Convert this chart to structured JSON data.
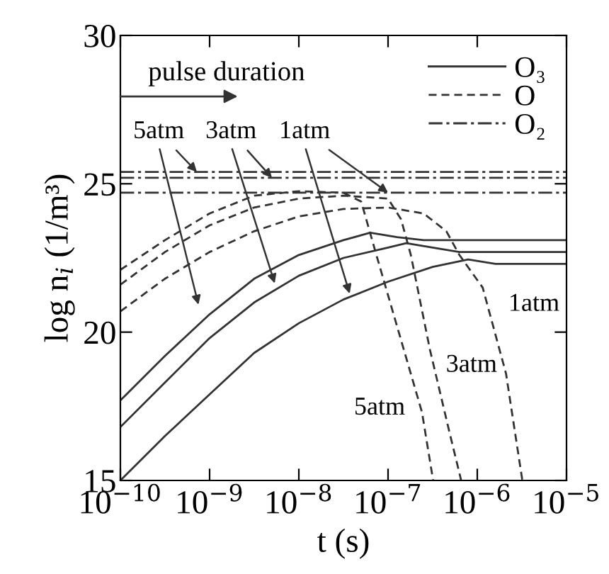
{
  "chart_data": {
    "type": "line",
    "xlabel": "t (s)",
    "ylabel": "log n$_{i}$ (1/m³)",
    "log": "x",
    "xlim": [
      1e-10,
      1e-05
    ],
    "ylim": [
      15,
      30
    ],
    "xticks": [
      {
        "value": 1e-10,
        "label": "10$^{−10}$"
      },
      {
        "value": 1e-09,
        "label": "10$^{−9}$"
      },
      {
        "value": 1e-08,
        "label": "10$^{−8}$"
      },
      {
        "value": 1e-07,
        "label": "10$^{−7}$"
      },
      {
        "value": 1e-06,
        "label": "10$^{−6}$"
      },
      {
        "value": 1e-05,
        "label": "10$^{−5}$"
      }
    ],
    "yticks": [
      15,
      20,
      25,
      30
    ],
    "grid": false,
    "legend": "top right",
    "marker": "none",
    "series": [
      {
        "name": "O₃",
        "color": "#333333",
        "line_style": "solid",
        "x": [
          1e-10,
          3.16e-10,
          1e-09,
          3.16e-09,
          1e-08,
          3.16e-08,
          6.3e-08,
          1.26e-07,
          2.5e-07,
          1e-05
        ],
        "values": [
          17.7,
          19.2,
          20.6,
          21.8,
          22.6,
          23.1,
          23.35,
          23.2,
          23.1,
          23.1
        ]
      },
      {
        "color": "#333333",
        "line_style": "solid",
        "x": [
          1e-10,
          3.16e-10,
          1e-09,
          3.16e-09,
          1e-08,
          3.16e-08,
          1e-07,
          1.6e-07,
          3.16e-07,
          6.3e-07,
          1e-05
        ],
        "values": [
          16.8,
          18.3,
          19.8,
          21.0,
          21.9,
          22.5,
          22.85,
          23.0,
          22.85,
          22.7,
          22.7
        ]
      },
      {
        "color": "#333333",
        "line_style": "solid",
        "x": [
          1e-10,
          3.16e-10,
          1e-09,
          3.16e-09,
          1e-08,
          3.16e-08,
          1e-07,
          3.16e-07,
          7.9e-07,
          1.6e-06,
          1e-05
        ],
        "values": [
          15.0,
          16.5,
          17.9,
          19.3,
          20.3,
          21.1,
          21.7,
          22.2,
          22.45,
          22.3,
          22.3
        ]
      },
      {
        "name": "O",
        "color": "#333333",
        "line_style": "dashed",
        "x": [
          1e-10,
          3.16e-10,
          1e-09,
          3.16e-09,
          1e-08,
          3.16e-08,
          5e-08,
          7.4e-08,
          1.26e-07,
          2.4e-07,
          3.2e-07
        ],
        "values": [
          22.1,
          23.1,
          24.0,
          24.6,
          24.75,
          24.7,
          24.4,
          22.6,
          20.2,
          17.3,
          15.0
        ]
      },
      {
        "color": "#333333",
        "line_style": "dashed",
        "x": [
          1e-10,
          3.16e-10,
          1e-09,
          3.16e-09,
          1e-08,
          3.16e-08,
          1e-07,
          1.4e-07,
          1.8e-07,
          2.95e-07,
          4.9e-07,
          6.6e-07
        ],
        "values": [
          21.6,
          22.7,
          23.6,
          24.2,
          24.5,
          24.6,
          24.5,
          23.8,
          22.6,
          19.4,
          16.6,
          15.0
        ]
      },
      {
        "color": "#333333",
        "line_style": "dashed",
        "x": [
          1e-10,
          3.16e-10,
          1e-09,
          3.16e-09,
          1e-08,
          3.16e-08,
          1e-07,
          2.5e-07,
          4.5e-07,
          6.3e-07,
          1.15e-06,
          2.1e-06,
          3.2e-06
        ],
        "values": [
          20.7,
          21.8,
          22.7,
          23.4,
          23.9,
          24.15,
          24.2,
          24.0,
          23.4,
          22.6,
          21.5,
          18.6,
          15.0
        ]
      },
      {
        "name": "O₂",
        "color": "#333333",
        "line_style": "dashdot",
        "x": [
          1e-10,
          1e-05
        ],
        "values": [
          25.4,
          25.4
        ]
      },
      {
        "color": "#333333",
        "line_style": "dashdot",
        "x": [
          1e-10,
          1e-05
        ],
        "values": [
          25.2,
          25.2
        ]
      },
      {
        "color": "#333333",
        "line_style": "dashdot",
        "x": [
          1e-10,
          1e-05
        ],
        "values": [
          24.7,
          24.7
        ]
      }
    ],
    "annotations": [
      "pulse duration",
      {
        "text": "5atm",
        "x": 7.2e-10,
        "y": 25.4
      },
      {
        "text": "3atm",
        "x": 5e-09,
        "y": 25.2
      },
      {
        "text": "1atm",
        "x": 1e-07,
        "y": 24.7
      },
      "1atm",
      "3atm",
      "5atm"
    ]
  }
}
